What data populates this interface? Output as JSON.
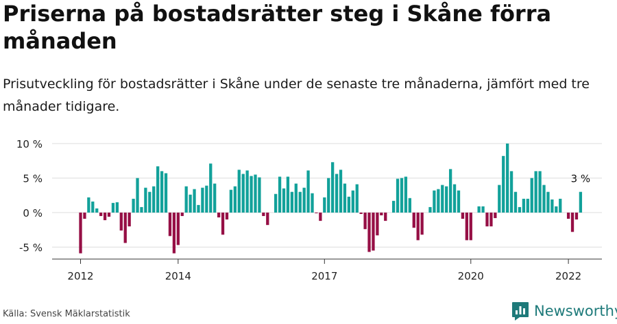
{
  "title": "Priserna på bostadsrätter steg i Skåne förra månaden",
  "subtitle": "Prisutveckling för bostadsrätter i Skåne under de senaste tre månaderna, jämfört med tre månader tidigare.",
  "source": "Källa: Svensk Mäklarstatistik",
  "brand": "Newsworthy",
  "colors": {
    "positive": "#12a19a",
    "negative": "#960f45",
    "grid": "#dddddd",
    "axis": "#333333",
    "brand": "#1e7a7a"
  },
  "chart_data": {
    "type": "bar",
    "title": "Priserna på bostadsrätter steg i Skåne förra månaden",
    "xlabel": "",
    "ylabel": "",
    "ylim": [
      -7,
      10.5
    ],
    "yticks": [
      -5,
      0,
      5,
      10
    ],
    "ytick_labels": [
      "-5 %",
      "0 %",
      "5 %",
      "10 %"
    ],
    "x_start": "2012-01",
    "xticks": [
      "2012",
      "2014",
      "2017",
      "2020",
      "2022"
    ],
    "last_label": "3 %",
    "values": [
      -5.9,
      -0.9,
      2.2,
      1.6,
      0.6,
      -0.5,
      -1.1,
      -0.6,
      1.4,
      1.5,
      -2.6,
      -4.4,
      -2.0,
      2.0,
      5.0,
      0.8,
      3.6,
      3.0,
      3.8,
      6.7,
      6.0,
      5.7,
      -3.4,
      -5.9,
      -4.7,
      -0.5,
      3.8,
      2.6,
      3.4,
      1.1,
      3.6,
      3.9,
      7.1,
      4.2,
      -0.7,
      -3.2,
      -1.0,
      3.3,
      3.8,
      6.2,
      5.6,
      6.1,
      5.3,
      5.5,
      5.1,
      -0.5,
      -1.8,
      0.0,
      2.7,
      5.2,
      3.5,
      5.2,
      3.0,
      4.2,
      3.0,
      3.6,
      6.1,
      2.8,
      -0.1,
      -1.2,
      2.2,
      5.0,
      7.3,
      5.6,
      6.2,
      4.2,
      2.3,
      3.2,
      4.1,
      -0.2,
      -2.4,
      -5.7,
      -5.5,
      -3.3,
      -0.4,
      -1.2,
      0.0,
      1.7,
      4.9,
      5.0,
      5.2,
      2.1,
      -2.2,
      -4.0,
      -3.2,
      0.0,
      0.8,
      3.2,
      3.4,
      4.0,
      3.8,
      6.3,
      4.1,
      3.2,
      -0.9,
      -4.0,
      -4.0,
      0.0,
      0.9,
      0.9,
      -2.0,
      -2.0,
      -0.8,
      4.0,
      8.2,
      10.0,
      6.0,
      3.0,
      0.8,
      2.0,
      2.0,
      5.0,
      6.0,
      6.0,
      4.0,
      3.0,
      1.9,
      0.9,
      2.0,
      0.0,
      -0.9,
      -2.8,
      -1.0,
      3.0
    ]
  }
}
